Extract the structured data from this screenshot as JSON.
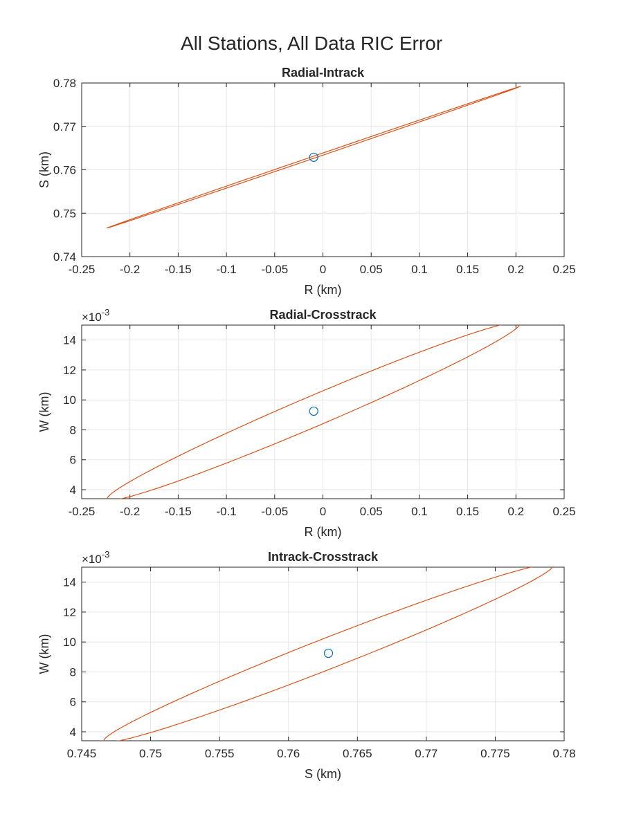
{
  "figure": {
    "title": "All Stations, All Data RIC Error"
  },
  "colors": {
    "ellipse": "#D95319",
    "center": "#0072BD"
  },
  "chart_data": [
    {
      "type": "scatter",
      "title": "Radial-Intrack",
      "xlabel": "R (km)",
      "ylabel": "S (km)",
      "xlim": [
        -0.25,
        0.25
      ],
      "ylim": [
        0.74,
        0.78
      ],
      "xticks": [
        -0.25,
        -0.2,
        -0.15,
        -0.1,
        -0.05,
        0,
        0.05,
        0.1,
        0.15,
        0.2,
        0.25
      ],
      "xtick_labels": [
        "-0.25",
        "-0.2",
        "-0.15",
        "-0.1",
        "-0.05",
        "0",
        "0.05",
        "0.1",
        "0.15",
        "0.2",
        "0.25"
      ],
      "yticks": [
        0.74,
        0.75,
        0.76,
        0.77,
        0.78
      ],
      "ytick_labels": [
        "0.74",
        "0.75",
        "0.76",
        "0.77",
        "0.78"
      ],
      "y_exponent_label": "",
      "grid": true,
      "center": {
        "x": -0.0095,
        "y": 0.7629
      },
      "ellipse": {
        "center": {
          "x": -0.0095,
          "y": 0.7629
        },
        "major_end": {
          "x": 0.2045,
          "y": 0.7792
        },
        "minor_end": {
          "x": -0.0095,
          "y": 0.76315
        }
      }
    },
    {
      "type": "scatter",
      "title": "Radial-Crosstrack",
      "xlabel": "R (km)",
      "ylabel": "W (km)",
      "xlim": [
        -0.25,
        0.25
      ],
      "ylim": [
        3.4,
        15.0
      ],
      "xticks": [
        -0.25,
        -0.2,
        -0.15,
        -0.1,
        -0.05,
        0,
        0.05,
        0.1,
        0.15,
        0.2,
        0.25
      ],
      "xtick_labels": [
        "-0.25",
        "-0.2",
        "-0.15",
        "-0.1",
        "-0.05",
        "0",
        "0.05",
        "0.1",
        "0.15",
        "0.2",
        "0.25"
      ],
      "yticks": [
        4,
        6,
        8,
        10,
        12,
        14
      ],
      "ytick_labels": [
        "4",
        "6",
        "8",
        "10",
        "12",
        "14"
      ],
      "y_exponent_label": "×10",
      "y_exponent_power": "-3",
      "grid": true,
      "center": {
        "x": -0.0095,
        "y": 9.25
      },
      "ellipse": {
        "center": {
          "x": -0.0095,
          "y": 9.25
        },
        "major_end": {
          "x": 0.2045,
          "y": 15.1
        },
        "minor_end": {
          "x": -0.0095,
          "y": 10.35
        }
      }
    },
    {
      "type": "scatter",
      "title": "Intrack-Crosstrack",
      "xlabel": "S (km)",
      "ylabel": "W (km)",
      "xlim": [
        0.745,
        0.78
      ],
      "ylim": [
        3.4,
        15.0
      ],
      "xticks": [
        0.745,
        0.75,
        0.755,
        0.76,
        0.765,
        0.77,
        0.775,
        0.78
      ],
      "xtick_labels": [
        "0.745",
        "0.75",
        "0.755",
        "0.76",
        "0.765",
        "0.77",
        "0.775",
        "0.78"
      ],
      "yticks": [
        4,
        6,
        8,
        10,
        12,
        14
      ],
      "ytick_labels": [
        "4",
        "6",
        "8",
        "10",
        "12",
        "14"
      ],
      "y_exponent_label": "×10",
      "y_exponent_power": "-3",
      "grid": true,
      "center": {
        "x": 0.7629,
        "y": 9.25
      },
      "ellipse": {
        "center": {
          "x": 0.7629,
          "y": 9.25
        },
        "major_end": {
          "x": 0.7792,
          "y": 15.1
        },
        "minor_end": {
          "x": 0.7629,
          "y": 10.35
        }
      }
    }
  ]
}
